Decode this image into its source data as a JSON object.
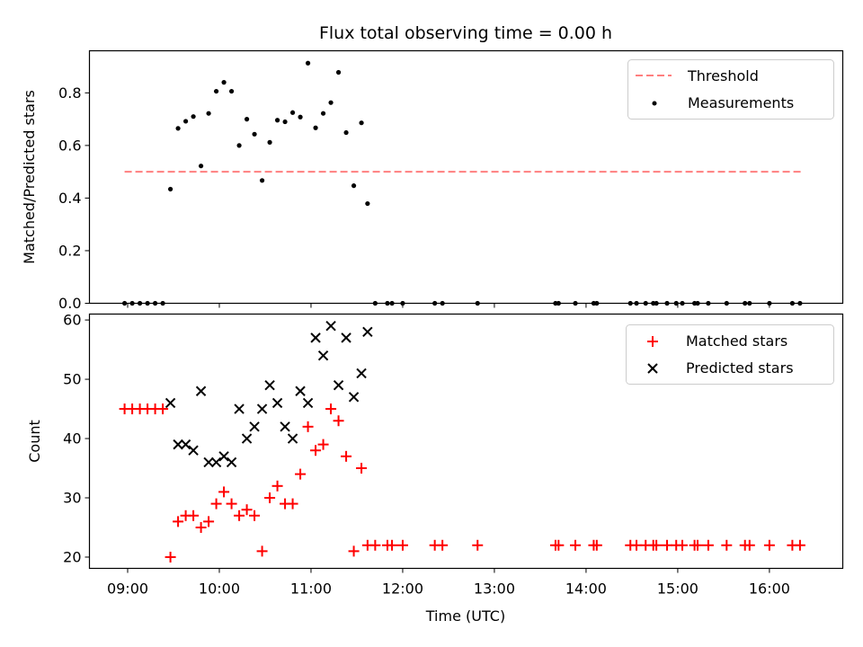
{
  "chart_data": [
    {
      "type": "scatter",
      "title": "Flux total observing time = 0.00 h",
      "xlabel": "",
      "ylabel": "Matched/Predicted stars",
      "ylim": [
        0,
        0.96
      ],
      "yticks": [
        "0.0",
        "0.2",
        "0.4",
        "0.6",
        "0.8"
      ],
      "legend_position": "upper right",
      "threshold": {
        "name": "Threshold",
        "value": 0.5,
        "x_range": [
          "08:58",
          "16:22"
        ],
        "color": "#ff7f7f",
        "style": "dashed"
      },
      "series": [
        {
          "name": "Measurements",
          "color": "#000000",
          "points": [
            [
              "08:58",
              0.0
            ],
            [
              "09:03",
              0.0
            ],
            [
              "09:08",
              0.0
            ],
            [
              "09:13",
              0.0
            ],
            [
              "09:18",
              0.0
            ],
            [
              "09:23",
              0.0
            ],
            [
              "09:28",
              0.434
            ],
            [
              "09:33",
              0.665
            ],
            [
              "09:38",
              0.692
            ],
            [
              "09:43",
              0.71
            ],
            [
              "09:48",
              0.522
            ],
            [
              "09:53",
              0.722
            ],
            [
              "09:58",
              0.806
            ],
            [
              "10:03",
              0.84
            ],
            [
              "10:08",
              0.806
            ],
            [
              "10:13",
              0.6
            ],
            [
              "10:18",
              0.7
            ],
            [
              "10:23",
              0.643
            ],
            [
              "10:28",
              0.467
            ],
            [
              "10:33",
              0.612
            ],
            [
              "10:38",
              0.696
            ],
            [
              "10:43",
              0.69
            ],
            [
              "10:48",
              0.725
            ],
            [
              "10:53",
              0.708
            ],
            [
              "10:58",
              0.913
            ],
            [
              "11:03",
              0.667
            ],
            [
              "11:08",
              0.722
            ],
            [
              "11:13",
              0.763
            ],
            [
              "11:18",
              0.878
            ],
            [
              "11:23",
              0.649
            ],
            [
              "11:28",
              0.447
            ],
            [
              "11:33",
              0.686
            ],
            [
              "11:37",
              0.379
            ],
            [
              "11:42",
              0.0
            ],
            [
              "11:50",
              0.0
            ],
            [
              "11:53",
              0.0
            ],
            [
              "12:00",
              0.0
            ],
            [
              "12:21",
              0.0
            ],
            [
              "12:26",
              0.0
            ],
            [
              "12:49",
              0.0
            ],
            [
              "13:40",
              0.0
            ],
            [
              "13:42",
              0.0
            ],
            [
              "13:53",
              0.0
            ],
            [
              "14:05",
              0.0
            ],
            [
              "14:07",
              0.0
            ],
            [
              "14:29",
              0.0
            ],
            [
              "14:33",
              0.0
            ],
            [
              "14:39",
              0.0
            ],
            [
              "14:44",
              0.0
            ],
            [
              "14:46",
              0.0
            ],
            [
              "14:53",
              0.0
            ],
            [
              "14:59",
              0.0
            ],
            [
              "15:03",
              0.0
            ],
            [
              "15:11",
              0.0
            ],
            [
              "15:13",
              0.0
            ],
            [
              "15:20",
              0.0
            ],
            [
              "15:32",
              0.0
            ],
            [
              "15:44",
              0.0
            ],
            [
              "15:47",
              0.0
            ],
            [
              "16:00",
              0.0
            ],
            [
              "16:15",
              0.0
            ],
            [
              "16:20",
              0.0
            ]
          ]
        }
      ]
    },
    {
      "type": "scatter",
      "title": "",
      "xlabel": "Time (UTC)",
      "ylabel": "Count",
      "ylim": [
        18.1,
        61.0
      ],
      "yticks": [
        "20",
        "30",
        "40",
        "50",
        "60"
      ],
      "xlim": [
        "08:35",
        "16:48"
      ],
      "xticks": [
        "09:00",
        "10:00",
        "11:00",
        "12:00",
        "13:00",
        "14:00",
        "15:00",
        "16:00"
      ],
      "legend_position": "upper right",
      "series": [
        {
          "name": "Matched stars",
          "marker": "plus",
          "color": "#ff0000",
          "points": [
            [
              "08:58",
              45
            ],
            [
              "09:03",
              45
            ],
            [
              "09:08",
              45
            ],
            [
              "09:13",
              45
            ],
            [
              "09:18",
              45
            ],
            [
              "09:23",
              45
            ],
            [
              "09:28",
              20
            ],
            [
              "09:33",
              26
            ],
            [
              "09:38",
              27
            ],
            [
              "09:43",
              27
            ],
            [
              "09:48",
              25
            ],
            [
              "09:53",
              26
            ],
            [
              "09:58",
              29
            ],
            [
              "10:03",
              31
            ],
            [
              "10:08",
              29
            ],
            [
              "10:13",
              27
            ],
            [
              "10:18",
              28
            ],
            [
              "10:23",
              27
            ],
            [
              "10:28",
              21
            ],
            [
              "10:33",
              30
            ],
            [
              "10:38",
              32
            ],
            [
              "10:43",
              29
            ],
            [
              "10:48",
              29
            ],
            [
              "10:53",
              34
            ],
            [
              "10:58",
              42
            ],
            [
              "11:03",
              38
            ],
            [
              "11:08",
              39
            ],
            [
              "11:13",
              45
            ],
            [
              "11:18",
              43
            ],
            [
              "11:23",
              37
            ],
            [
              "11:28",
              21
            ],
            [
              "11:33",
              35
            ],
            [
              "11:37",
              22
            ],
            [
              "11:42",
              22
            ],
            [
              "11:50",
              22
            ],
            [
              "11:53",
              22
            ],
            [
              "12:00",
              22
            ],
            [
              "12:21",
              22
            ],
            [
              "12:26",
              22
            ],
            [
              "12:49",
              22
            ],
            [
              "13:40",
              22
            ],
            [
              "13:42",
              22
            ],
            [
              "13:53",
              22
            ],
            [
              "14:05",
              22
            ],
            [
              "14:07",
              22
            ],
            [
              "14:29",
              22
            ],
            [
              "14:33",
              22
            ],
            [
              "14:39",
              22
            ],
            [
              "14:44",
              22
            ],
            [
              "14:46",
              22
            ],
            [
              "14:53",
              22
            ],
            [
              "14:59",
              22
            ],
            [
              "15:03",
              22
            ],
            [
              "15:11",
              22
            ],
            [
              "15:13",
              22
            ],
            [
              "15:20",
              22
            ],
            [
              "15:32",
              22
            ],
            [
              "15:44",
              22
            ],
            [
              "15:47",
              22
            ],
            [
              "16:00",
              22
            ],
            [
              "16:15",
              22
            ],
            [
              "16:20",
              22
            ]
          ]
        },
        {
          "name": "Predicted stars",
          "marker": "x",
          "color": "#000000",
          "points": [
            [
              "09:28",
              46
            ],
            [
              "09:33",
              39
            ],
            [
              "09:38",
              39
            ],
            [
              "09:43",
              38
            ],
            [
              "09:48",
              48
            ],
            [
              "09:53",
              36
            ],
            [
              "09:58",
              36
            ],
            [
              "10:03",
              37
            ],
            [
              "10:08",
              36
            ],
            [
              "10:13",
              45
            ],
            [
              "10:18",
              40
            ],
            [
              "10:23",
              42
            ],
            [
              "10:28",
              45
            ],
            [
              "10:33",
              49
            ],
            [
              "10:38",
              46
            ],
            [
              "10:43",
              42
            ],
            [
              "10:48",
              40
            ],
            [
              "10:53",
              48
            ],
            [
              "10:58",
              46
            ],
            [
              "11:03",
              57
            ],
            [
              "11:08",
              54
            ],
            [
              "11:13",
              59
            ],
            [
              "11:18",
              49
            ],
            [
              "11:23",
              57
            ],
            [
              "11:28",
              47
            ],
            [
              "11:33",
              51
            ],
            [
              "11:37",
              58
            ]
          ]
        }
      ]
    }
  ]
}
